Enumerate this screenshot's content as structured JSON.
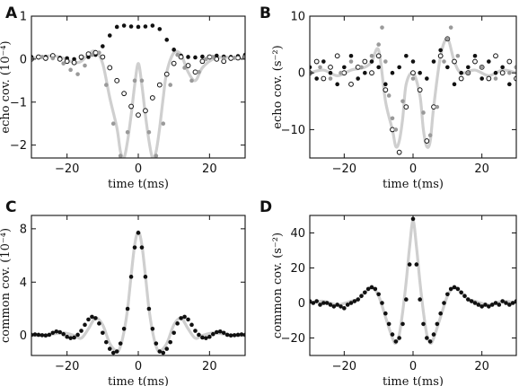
{
  "chart_data": [
    {
      "panel": "A",
      "type": "scatter",
      "xlabel": "time t(ms)",
      "ylabel": "echo cov. (10⁻⁴)",
      "xlim": [
        -30,
        30
      ],
      "ylim": [
        -2.3,
        1.0
      ],
      "xticks": [
        -20,
        0,
        20
      ],
      "xtick_labels": [
        "−20",
        "0",
        "20"
      ],
      "yticks": [
        1,
        0,
        -1,
        -2
      ],
      "ytick_labels": [
        "1",
        "0",
        "−1",
        "−2"
      ],
      "series": [
        {
          "marker": "line",
          "color": "#cfcfcf",
          "x": [
            -30,
            -27,
            -24,
            -21,
            -18,
            -16,
            -14,
            -12,
            -10,
            -8,
            -6,
            -5,
            -4,
            -3,
            -2,
            -1,
            0,
            1,
            2,
            3,
            4,
            5,
            6,
            7,
            8,
            10,
            12,
            14,
            16,
            18,
            21,
            24,
            27,
            30
          ],
          "y": [
            0.02,
            0.05,
            0.08,
            0.02,
            -0.08,
            -0.05,
            0.12,
            0.18,
            -0.1,
            -0.9,
            -1.6,
            -2.15,
            -2.3,
            -1.9,
            -1.3,
            -0.6,
            -0.1,
            -0.6,
            -1.3,
            -1.9,
            -2.3,
            -2.15,
            -1.6,
            -0.9,
            -0.3,
            0.15,
            0.1,
            -0.3,
            -0.5,
            -0.2,
            0.0,
            0.05,
            0.02,
            0.02
          ]
        },
        {
          "marker": "filled",
          "color": "#111111",
          "x": [
            -30,
            -28,
            -26,
            -24,
            -22,
            -20,
            -18,
            -16,
            -14,
            -12,
            -10,
            -8,
            -6,
            -4,
            -2,
            0,
            2,
            4,
            6,
            8,
            10,
            12,
            14,
            16,
            18,
            20,
            22,
            24,
            26,
            28,
            30
          ],
          "y": [
            0.05,
            0.04,
            0.05,
            0.06,
            0.03,
            0.02,
            0.0,
            0.03,
            0.05,
            0.1,
            0.3,
            0.55,
            0.75,
            0.78,
            0.76,
            0.75,
            0.76,
            0.78,
            0.7,
            0.45,
            0.22,
            0.08,
            0.05,
            0.04,
            0.06,
            0.05,
            0.08,
            0.06,
            0.05,
            0.07,
            0.1
          ]
        },
        {
          "marker": "open",
          "color": "#111111",
          "x": [
            -30,
            -28,
            -26,
            -24,
            -22,
            -20,
            -18,
            -16,
            -14,
            -12,
            -10,
            -8,
            -6,
            -4,
            -2,
            0,
            2,
            4,
            6,
            8,
            10,
            12,
            14,
            16,
            18,
            20,
            22,
            24,
            26,
            28,
            30
          ],
          "y": [
            0.0,
            0.05,
            0.02,
            0.08,
            0.0,
            -0.05,
            -0.08,
            0.05,
            0.12,
            0.15,
            0.05,
            -0.2,
            -0.5,
            -0.8,
            -1.1,
            -1.3,
            -1.2,
            -0.9,
            -0.6,
            -0.35,
            -0.1,
            0.05,
            -0.15,
            -0.3,
            -0.05,
            0.05,
            0.0,
            -0.05,
            0.02,
            0.03,
            0.05
          ]
        },
        {
          "marker": "grey",
          "color": "#9a9a9a",
          "x": [
            -30,
            -27,
            -24,
            -21,
            -19,
            -17,
            -15,
            -13,
            -11,
            -9,
            -7,
            -5,
            -3,
            -1,
            1,
            3,
            5,
            7,
            9,
            11,
            13,
            15,
            17,
            19,
            21,
            24,
            27,
            30
          ],
          "y": [
            0.0,
            0.05,
            0.02,
            -0.1,
            -0.25,
            -0.35,
            -0.15,
            0.1,
            0.15,
            -0.6,
            -1.5,
            -2.25,
            -1.7,
            -0.5,
            -0.5,
            -1.7,
            -2.25,
            -1.5,
            -0.6,
            0.1,
            -0.2,
            -0.5,
            -0.3,
            0.0,
            0.05,
            0.02,
            0.03,
            0.05
          ]
        }
      ]
    },
    {
      "panel": "B",
      "type": "scatter",
      "xlabel": "time t(ms)",
      "ylabel": "echo cov. (s⁻²)",
      "xlim": [
        -30,
        30
      ],
      "ylim": [
        -15,
        10
      ],
      "xticks": [
        -20,
        0,
        20
      ],
      "xtick_labels": [
        "−20",
        "0",
        "20"
      ],
      "yticks": [
        10,
        0,
        -10
      ],
      "ytick_labels": [
        "10",
        "0",
        "−10"
      ],
      "series": [
        {
          "marker": "line",
          "color": "#cfcfcf",
          "x": [
            -30,
            -26,
            -22,
            -18,
            -14,
            -12,
            -10,
            -8,
            -6,
            -5,
            -4,
            -3,
            -2,
            0,
            2,
            3,
            4,
            5,
            6,
            8,
            10,
            12,
            14,
            18,
            22,
            26,
            30
          ],
          "y": [
            0,
            0.5,
            -0.5,
            0.5,
            1,
            2,
            4,
            -5,
            -10,
            -13,
            -12,
            -8,
            -2,
            0,
            -4,
            -10,
            -13,
            -12,
            -6,
            3,
            6,
            2,
            0,
            0.5,
            -0.5,
            0.5,
            0
          ],
          "smooth": true
        },
        {
          "marker": "filled",
          "color": "#111111",
          "x": [
            -30,
            -28,
            -26,
            -24,
            -22,
            -20,
            -18,
            -16,
            -14,
            -12,
            -10,
            -8,
            -6,
            -4,
            -2,
            0,
            2,
            4,
            6,
            8,
            10,
            12,
            14,
            16,
            18,
            20,
            22,
            24,
            26,
            28,
            30
          ],
          "y": [
            1,
            -1,
            2,
            0,
            -2,
            1,
            3,
            -1,
            0,
            2,
            1,
            -2,
            0,
            1,
            3,
            2,
            0,
            -1,
            2,
            4,
            1,
            -2,
            0,
            1,
            3,
            -1,
            2,
            0,
            1,
            -2,
            1
          ]
        },
        {
          "marker": "open",
          "color": "#111111",
          "x": [
            -30,
            -28,
            -26,
            -24,
            -22,
            -20,
            -18,
            -16,
            -14,
            -12,
            -10,
            -8,
            -6,
            -4,
            -2,
            0,
            2,
            4,
            6,
            8,
            10,
            12,
            14,
            16,
            18,
            20,
            22,
            24,
            26,
            28,
            30
          ],
          "y": [
            0,
            2,
            -1,
            1,
            3,
            0,
            -2,
            1,
            2,
            0,
            3,
            -3,
            -10,
            -14,
            -6,
            0,
            -3,
            -12,
            -6,
            3,
            6,
            2,
            -1,
            0,
            2,
            1,
            -1,
            3,
            0,
            2,
            -1
          ]
        },
        {
          "marker": "grey",
          "color": "#9a9a9a",
          "x": [
            -30,
            -27,
            -24,
            -21,
            -18,
            -15,
            -12,
            -10,
            -9,
            -8,
            -7,
            -6,
            -5,
            -3,
            0,
            3,
            5,
            7,
            9,
            10,
            11,
            13,
            16,
            20,
            24,
            28,
            30
          ],
          "y": [
            0,
            1,
            -1,
            0,
            2,
            1,
            3,
            5,
            8,
            2,
            -4,
            -8,
            -10,
            -5,
            -1,
            -7,
            -11,
            -6,
            2,
            6,
            8,
            3,
            0,
            1,
            -1,
            0,
            1
          ]
        }
      ]
    },
    {
      "panel": "C",
      "type": "line",
      "xlabel": "time t(ms)",
      "ylabel": "common cov. (10⁻⁴)",
      "xlim": [
        -30,
        30
      ],
      "ylim": [
        -1.5,
        9
      ],
      "xticks": [
        -20,
        0,
        20
      ],
      "xtick_labels": [
        "−20",
        "0",
        "20"
      ],
      "yticks": [
        8,
        4,
        0
      ],
      "ytick_labels": [
        "8",
        "4",
        "0"
      ],
      "series": [
        {
          "marker": "line",
          "color": "#cfcfcf",
          "x": [
            -30,
            -27,
            -24,
            -21,
            -18,
            -16,
            -14,
            -12,
            -10,
            -8,
            -6,
            -5,
            -4,
            -3,
            -2,
            -1,
            0,
            1,
            2,
            3,
            4,
            5,
            6,
            8,
            10,
            12,
            14,
            16,
            18,
            21,
            24,
            27,
            30
          ],
          "y": [
            0,
            0,
            0.1,
            0.2,
            0,
            -0.2,
            0.5,
            1.3,
            0.8,
            -0.6,
            -1.2,
            -0.8,
            0.3,
            2,
            4.5,
            6.8,
            7.8,
            6.8,
            4.5,
            2,
            0.3,
            -0.8,
            -1.2,
            -0.6,
            0.8,
            1.3,
            0.5,
            -0.2,
            0,
            0.2,
            0.1,
            0,
            0
          ],
          "smooth": true
        },
        {
          "marker": "filled",
          "color": "#111111",
          "x": [
            -30,
            -29,
            -28,
            -27,
            -26,
            -25,
            -24,
            -23,
            -22,
            -21,
            -20,
            -19,
            -18,
            -17,
            -16,
            -15,
            -14,
            -13,
            -12,
            -11,
            -10,
            -9,
            -8,
            -7,
            -6,
            -5,
            -4,
            -3,
            -2,
            -1,
            0,
            1,
            2,
            3,
            4,
            5,
            6,
            7,
            8,
            9,
            10,
            11,
            12,
            13,
            14,
            15,
            16,
            17,
            18,
            19,
            20,
            21,
            22,
            23,
            24,
            25,
            26,
            27,
            28,
            29,
            30
          ],
          "y": [
            0.05,
            0.08,
            0.05,
            0.02,
            0,
            0.05,
            0.2,
            0.3,
            0.25,
            0.1,
            -0.1,
            -0.2,
            -0.15,
            0.05,
            0.35,
            0.8,
            1.2,
            1.4,
            1.3,
            0.9,
            0.2,
            -0.5,
            -1.0,
            -1.3,
            -1.2,
            -0.6,
            0.5,
            2.0,
            4.4,
            6.6,
            7.7,
            6.6,
            4.4,
            2.0,
            0.5,
            -0.6,
            -1.2,
            -1.3,
            -1.0,
            -0.5,
            0.2,
            0.9,
            1.3,
            1.4,
            1.2,
            0.8,
            0.35,
            0.05,
            -0.15,
            -0.2,
            -0.1,
            0.1,
            0.25,
            0.3,
            0.2,
            0.05,
            0,
            0.02,
            0.05,
            0.08,
            0.05
          ]
        }
      ]
    },
    {
      "panel": "D",
      "type": "line",
      "xlabel": "time t(ms)",
      "ylabel": "common cov. (s⁻²)",
      "xlim": [
        -30,
        30
      ],
      "ylim": [
        -30,
        50
      ],
      "xticks": [
        -20,
        0,
        20
      ],
      "xtick_labels": [
        "−20",
        "0",
        "20"
      ],
      "yticks": [
        40,
        20,
        0,
        -20
      ],
      "ytick_labels": [
        "40",
        "20",
        "0",
        "−20"
      ],
      "series": [
        {
          "marker": "line",
          "color": "#cfcfcf",
          "x": [
            -30,
            -26,
            -22,
            -18,
            -16,
            -14,
            -12,
            -10,
            -8,
            -6,
            -5,
            -4,
            -3,
            -2,
            -1,
            0,
            1,
            2,
            3,
            4,
            5,
            6,
            8,
            10,
            12,
            14,
            16,
            18,
            22,
            26,
            30
          ],
          "y": [
            0,
            1,
            -1,
            1,
            2,
            6,
            9,
            4,
            -8,
            -20,
            -23,
            -18,
            -5,
            12,
            32,
            47,
            32,
            12,
            -5,
            -18,
            -23,
            -20,
            -8,
            4,
            9,
            6,
            2,
            1,
            -1,
            1,
            0
          ],
          "smooth": true
        },
        {
          "marker": "filled",
          "color": "#111111",
          "x": [
            -30,
            -29,
            -28,
            -27,
            -26,
            -25,
            -24,
            -23,
            -22,
            -21,
            -20,
            -19,
            -18,
            -17,
            -16,
            -15,
            -14,
            -13,
            -12,
            -11,
            -10,
            -9,
            -8,
            -7,
            -6,
            -5,
            -4,
            -3,
            -2,
            -1,
            0,
            1,
            2,
            3,
            4,
            5,
            6,
            7,
            8,
            9,
            10,
            11,
            12,
            13,
            14,
            15,
            16,
            17,
            18,
            19,
            20,
            21,
            22,
            23,
            24,
            25,
            26,
            27,
            28,
            29,
            30
          ],
          "y": [
            1,
            0,
            1,
            -1,
            0,
            0,
            -1,
            -2,
            -1,
            -2,
            -3,
            -1,
            0,
            1,
            2,
            4,
            6,
            8,
            9,
            8,
            5,
            0,
            -6,
            -12,
            -18,
            -22,
            -20,
            -12,
            2,
            22,
            48,
            22,
            2,
            -12,
            -20,
            -22,
            -18,
            -12,
            -6,
            0,
            5,
            8,
            9,
            8,
            6,
            4,
            2,
            1,
            0,
            -1,
            -2,
            -1,
            -2,
            -1,
            0,
            -1,
            1,
            0,
            -1,
            0,
            1
          ]
        }
      ]
    }
  ],
  "panels": {
    "A": {
      "letter": "A"
    },
    "B": {
      "letter": "B"
    },
    "C": {
      "letter": "C"
    },
    "D": {
      "letter": "D"
    }
  }
}
